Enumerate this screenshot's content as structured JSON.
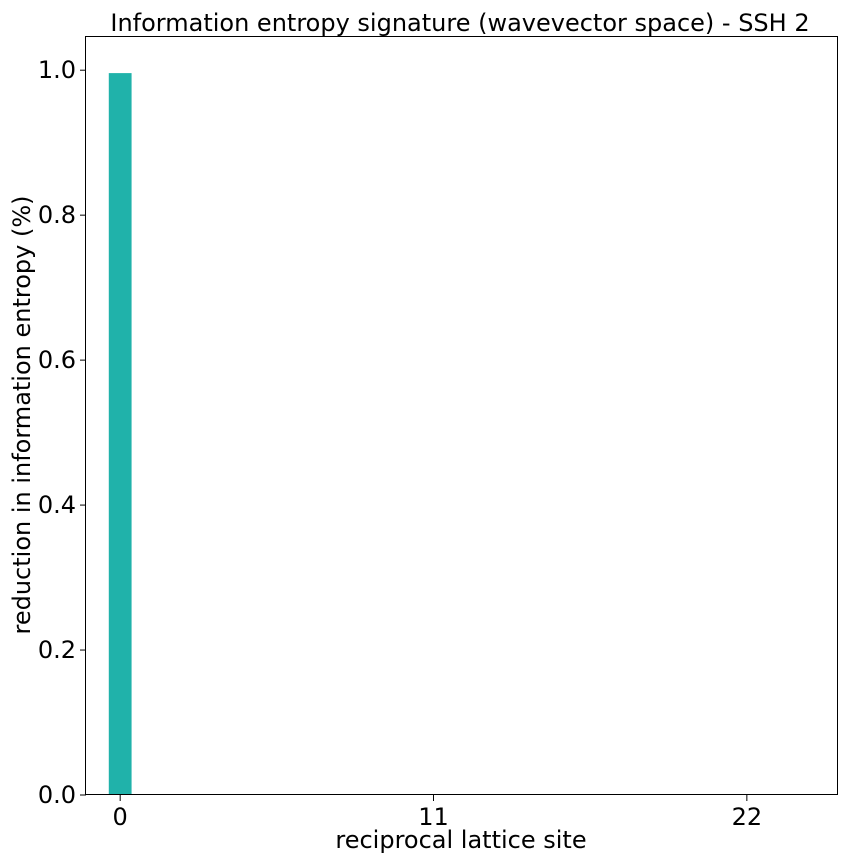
{
  "chart_data": {
    "type": "bar",
    "title": "Information entropy signature (wavevector space) - SSH 2",
    "xlabel": "reciprocal lattice site",
    "ylabel": "reduction in information entropy (%)",
    "x": [
      0,
      1,
      2,
      3,
      4,
      5,
      6,
      7,
      8,
      9,
      10,
      11,
      12,
      13,
      14,
      15,
      16,
      17,
      18,
      19,
      20,
      21,
      22,
      23,
      24
    ],
    "values": [
      0.996,
      0,
      0,
      0,
      0,
      0,
      0,
      0,
      0,
      0,
      0,
      0,
      0,
      0,
      0,
      0,
      0,
      0,
      0,
      0,
      0,
      0,
      0,
      0,
      0
    ],
    "xticks": [
      0,
      11,
      22
    ],
    "xtick_labels": [
      "0",
      "11",
      "22"
    ],
    "yticks": [
      0.0,
      0.2,
      0.4,
      0.6,
      0.8,
      1.0
    ],
    "ytick_labels": [
      "0.0",
      "0.2",
      "0.4",
      "0.6",
      "0.8",
      "1.0"
    ],
    "xlim": [
      -1.2,
      25.2
    ],
    "ylim": [
      0,
      1.0458
    ],
    "bar_color": "#20b2aa",
    "grid": false,
    "legend": "none"
  }
}
